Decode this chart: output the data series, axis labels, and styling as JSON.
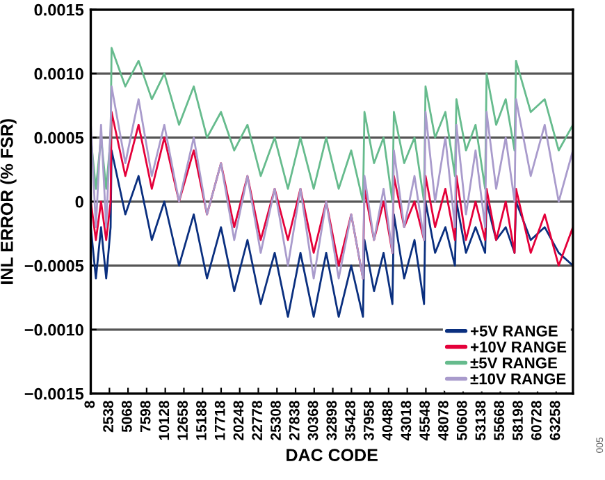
{
  "chart_data": {
    "type": "line",
    "xlabel": "DAC CODE",
    "ylabel": "INL ERROR (% FSR)",
    "annotations": [
      "005"
    ],
    "x": [
      8,
      700,
      1400,
      2100,
      2700,
      2830,
      4700,
      6500,
      8300,
      10000,
      12000,
      14000,
      15800,
      17700,
      19500,
      21300,
      23100,
      25000,
      26800,
      28500,
      30300,
      32000,
      33700,
      35400,
      37000,
      37200,
      38500,
      39800,
      41000,
      41200,
      42600,
      44000,
      45300,
      45500,
      46800,
      48200,
      49500,
      49700,
      51000,
      52300,
      53600,
      53800,
      55100,
      56400,
      57600,
      57800,
      59800,
      61700,
      63600,
      65535
    ],
    "series": [
      {
        "name": "+5V RANGE",
        "color": "#0a2f7f",
        "values": [
          -0.0002,
          -0.0006,
          -0.0002,
          -0.0006,
          -0.0002,
          0.0004,
          -0.0001,
          0.0002,
          -0.0003,
          0.0,
          -0.0005,
          -0.0001,
          -0.0006,
          -0.0002,
          -0.0007,
          -0.0003,
          -0.0008,
          -0.0004,
          -0.0009,
          -0.0004,
          -0.0009,
          -0.0004,
          -0.0009,
          -0.0005,
          -0.0009,
          -0.0003,
          -0.0007,
          -0.0004,
          -0.0008,
          -0.0001,
          -0.0006,
          -0.0003,
          -0.0008,
          0.0,
          -0.0004,
          -0.0002,
          -0.0005,
          0.0,
          -0.0004,
          -0.0002,
          -0.0004,
          0.0,
          -0.0003,
          -0.0002,
          -0.0004,
          0.0,
          -0.0003,
          -0.0002,
          -0.0004,
          -0.0005
        ]
      },
      {
        "name": "+10V RANGE",
        "color": "#e4003a",
        "values": [
          0.0,
          -0.0003,
          0.0,
          -0.0003,
          0.0,
          0.0007,
          0.0002,
          0.0006,
          0.0001,
          0.0005,
          0.0,
          0.0004,
          -0.0001,
          0.0003,
          -0.0002,
          0.0002,
          -0.0003,
          0.0001,
          -0.0003,
          0.0001,
          -0.0004,
          0.0,
          -0.0005,
          -0.0001,
          -0.0006,
          0.0001,
          -0.0003,
          0.0,
          -0.0004,
          0.0002,
          -0.0002,
          0.0,
          -0.0003,
          0.0002,
          -0.0002,
          0.0001,
          -0.0003,
          0.0002,
          -0.0003,
          0.0,
          -0.0003,
          0.0001,
          -0.0003,
          0.0,
          -0.0004,
          0.0001,
          -0.0004,
          -0.0001,
          -0.0005,
          -0.0002
        ]
      },
      {
        "name": "±5V RANGE",
        "color": "#66bb8d",
        "values": [
          0.0005,
          0.0001,
          0.0005,
          0.0001,
          0.0005,
          0.0012,
          0.0009,
          0.0011,
          0.0008,
          0.001,
          0.0006,
          0.0009,
          0.0005,
          0.0007,
          0.0004,
          0.0006,
          0.0002,
          0.0005,
          0.0001,
          0.0005,
          0.0001,
          0.0005,
          0.0001,
          0.0004,
          0.0,
          0.0007,
          0.0003,
          0.0005,
          0.0,
          0.0007,
          0.0003,
          0.0005,
          0.0,
          0.0009,
          0.0005,
          0.0007,
          0.0002,
          0.0008,
          0.0004,
          0.0006,
          0.0001,
          0.001,
          0.0006,
          0.0008,
          0.0004,
          0.0011,
          0.0007,
          0.0008,
          0.0004,
          0.0006
        ]
      },
      {
        "name": "±10V RANGE",
        "color": "#a99bcc",
        "values": [
          0.0006,
          -0.0002,
          0.0006,
          -0.0002,
          0.0006,
          0.0009,
          0.0003,
          0.0008,
          0.0002,
          0.0006,
          0.0,
          0.0005,
          -0.0001,
          0.0003,
          -0.0003,
          0.0002,
          -0.0004,
          0.0001,
          -0.0005,
          0.0001,
          -0.0006,
          0.0,
          -0.0006,
          -0.0001,
          -0.0006,
          0.0002,
          -0.0003,
          0.0001,
          -0.0004,
          0.0004,
          -0.0002,
          0.0002,
          -0.0003,
          0.0007,
          0.0,
          0.0005,
          -0.0002,
          0.0006,
          -0.0001,
          0.0004,
          -0.0002,
          0.0007,
          0.0001,
          0.0005,
          0.0,
          0.0008,
          0.0002,
          0.0006,
          0.0,
          0.0004
        ]
      }
    ],
    "xlim": [
      0,
      65535
    ],
    "xticks": [
      8,
      2538,
      5068,
      7598,
      10128,
      12658,
      15188,
      17718,
      20248,
      22778,
      25308,
      27838,
      30368,
      32898,
      35428,
      37958,
      40488,
      43018,
      45548,
      48078,
      50608,
      53138,
      55668,
      58198,
      60728,
      63258
    ],
    "ylim": [
      -0.0015,
      0.0015
    ],
    "yticks": [
      {
        "value": -0.0015,
        "label": "−0.0015"
      },
      {
        "value": -0.001,
        "label": "−0.0010"
      },
      {
        "value": -0.0005,
        "label": "−0.0005"
      },
      {
        "value": 0,
        "label": "0"
      },
      {
        "value": 0.0005,
        "label": "0.0005"
      },
      {
        "value": 0.001,
        "label": "0.0010"
      },
      {
        "value": 0.0015,
        "label": "0.0015"
      }
    ],
    "grid": "y",
    "legend": "bottom right",
    "marker": "none",
    "line_style": "solid"
  }
}
